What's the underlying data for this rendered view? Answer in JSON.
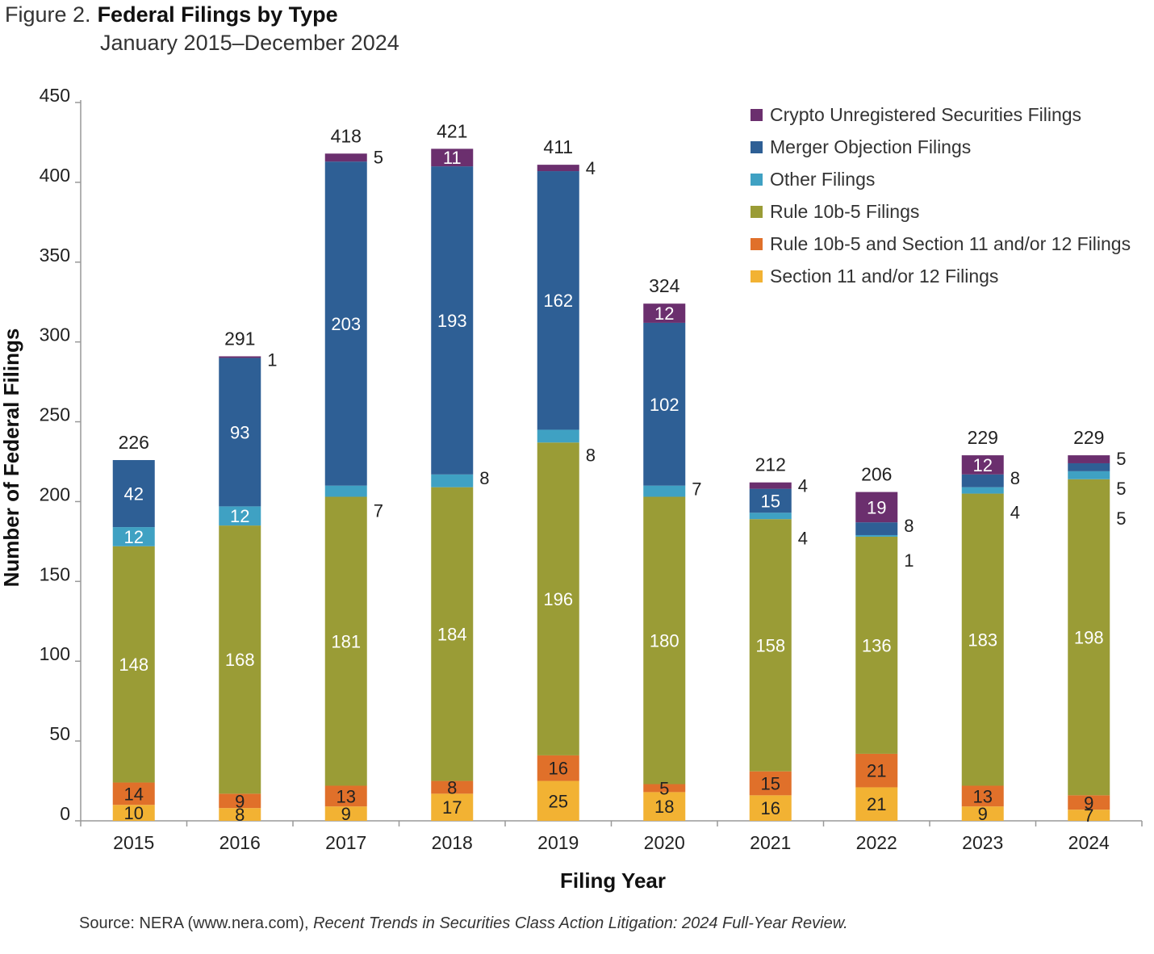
{
  "figure": {
    "number": "Figure 2.",
    "title": "Federal Filings by Type",
    "subtitle": "January 2015–December 2024",
    "source_prefix": "Source: NERA (www.nera.com), ",
    "source_italic": "Recent Trends in Securities Class Action Litigation: 2024 Full-Year Review."
  },
  "chart_data": {
    "type": "bar",
    "stacked": true,
    "title": "Federal Filings by Type",
    "xlabel": "Filing Year",
    "ylabel": "Number of Federal Filings",
    "ylim": [
      0,
      450
    ],
    "yticks": [
      0,
      50,
      100,
      150,
      200,
      250,
      300,
      350,
      400,
      450
    ],
    "categories": [
      "2015",
      "2016",
      "2017",
      "2018",
      "2019",
      "2020",
      "2021",
      "2022",
      "2023",
      "2024"
    ],
    "totals": [
      226,
      291,
      418,
      421,
      411,
      324,
      212,
      206,
      229,
      229
    ],
    "legend_position": "top-right",
    "series": [
      {
        "name": "Section 11 and/or 12 Filings",
        "color": "#f2b233",
        "values": [
          10,
          8,
          9,
          17,
          25,
          18,
          16,
          21,
          9,
          7
        ]
      },
      {
        "name": "Rule 10b-5 and Section 11 and/or 12 Filings",
        "color": "#e0702a",
        "values": [
          14,
          9,
          13,
          8,
          16,
          5,
          15,
          21,
          13,
          9
        ]
      },
      {
        "name": "Rule 10b-5 Filings",
        "color": "#9a9c36",
        "values": [
          148,
          168,
          181,
          184,
          196,
          180,
          158,
          136,
          183,
          198
        ]
      },
      {
        "name": "Other Filings",
        "color": "#3fa1c3",
        "values": [
          12,
          12,
          7,
          8,
          8,
          7,
          4,
          1,
          4,
          5
        ]
      },
      {
        "name": "Merger Objection Filings",
        "color": "#2e5f95",
        "values": [
          42,
          93,
          203,
          193,
          162,
          102,
          15,
          8,
          8,
          5
        ]
      },
      {
        "name": "Crypto Unregistered Securities Filings",
        "color": "#6b2f6e",
        "values": [
          0,
          1,
          5,
          11,
          4,
          12,
          4,
          19,
          12,
          5
        ]
      }
    ],
    "legend_order": [
      5,
      4,
      3,
      2,
      1,
      0
    ]
  }
}
